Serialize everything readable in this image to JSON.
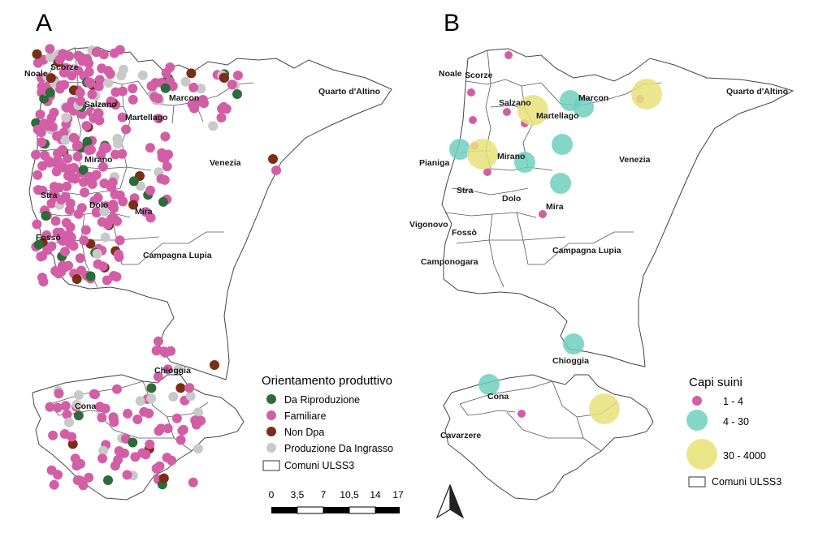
{
  "panels": {
    "a": {
      "letter": "A",
      "labels": {
        "noale": "Noale",
        "scorze": "Scorze",
        "salzano": "Salzano",
        "martellago": "Martellago",
        "marcon": "Marcon",
        "quarto": "Quarto d'Altino",
        "mirano": "Mirano",
        "venezia": "Venezia",
        "stra": "Stra",
        "dolo": "Dolo",
        "mira": "Mira",
        "fosso": "Fossò",
        "campagna": "Campagna Lupia",
        "chioggia": "Chioggia",
        "cona": "Cona"
      },
      "legend": {
        "title": "Orientamento produttivo",
        "items": [
          {
            "label": "Da Riproduzione",
            "color": "#2e6b3a"
          },
          {
            "label": "Familiare",
            "color": "#d25fa6"
          },
          {
            "label": "Non Dpa",
            "color": "#7a2e14"
          },
          {
            "label": "Produzione Da Ingrasso",
            "color": "#c9c9c9"
          }
        ],
        "boundary_label": "Comuni ULSS3"
      },
      "scale": {
        "ticks": [
          "0",
          "3,5",
          "7",
          "10,5",
          "14",
          "17"
        ]
      }
    },
    "b": {
      "letter": "B",
      "labels": {
        "noale": "Noale",
        "scorze": "Scorze",
        "salzano": "Salzano",
        "martellago": "Martellago",
        "marcon": "Marcon",
        "quarto": "Quarto d'Altino",
        "pianiga": "Pianiga",
        "mirano": "Mirano",
        "venezia": "Venezia",
        "stra": "Stra",
        "dolo": "Dolo",
        "mira": "Mira",
        "vigonovo": "Vigonovo",
        "fosso": "Fossò",
        "campagna": "Campagna Lupia",
        "camponogara": "Camponogara",
        "chioggia": "Chioggia",
        "cona": "Cona",
        "cavarzere": "Cavarzere"
      },
      "legend": {
        "title": "Capi suini",
        "items": [
          {
            "label": "1 - 4",
            "color": "#d25fa6"
          },
          {
            "label": "4 - 30",
            "color": "#6fcfbf"
          },
          {
            "label": "30 - 4000",
            "color": "#e8e27a"
          }
        ],
        "boundary_label": "Comuni ULSS3"
      }
    }
  }
}
